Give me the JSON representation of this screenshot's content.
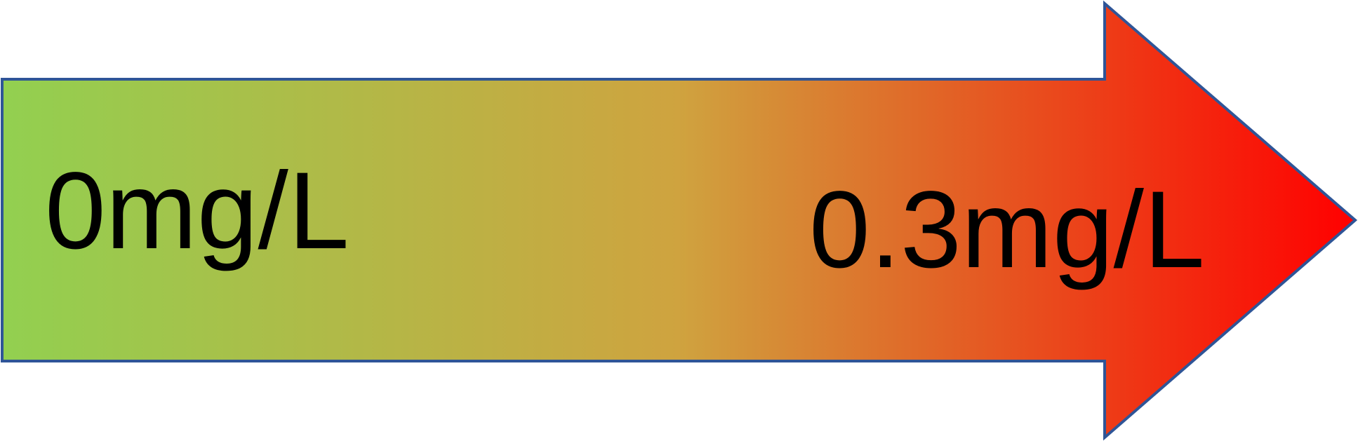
{
  "diagram": {
    "start_label": "0mg/L",
    "end_label": "0.3mg/L"
  },
  "colors": {
    "gradient_start": "#92d050",
    "gradient_mid": "#cfa33f",
    "gradient_end": "#ff0000",
    "outline": "#2f5597",
    "text": "#000000"
  }
}
